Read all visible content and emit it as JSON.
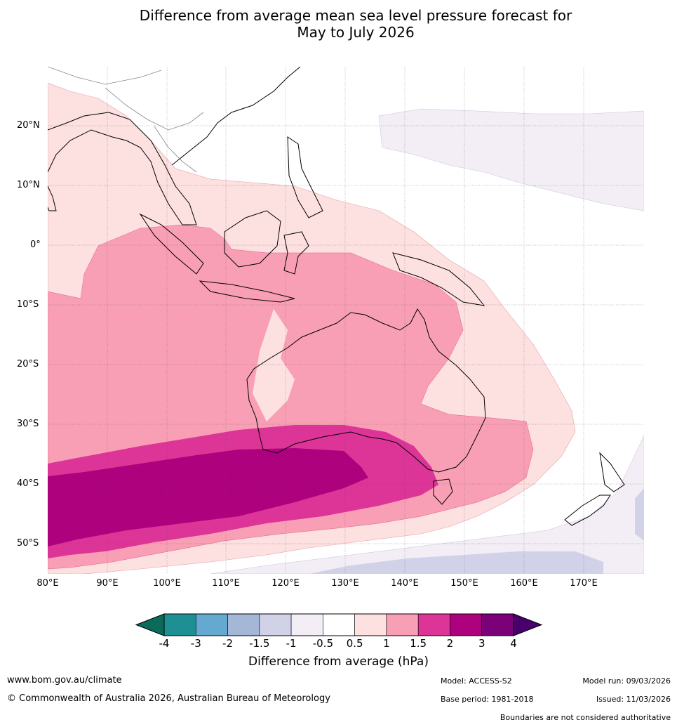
{
  "title_line1": "Difference from average mean sea level pressure forecast for",
  "title_line2": "May to July 2026",
  "lat_labels": [
    "20°N",
    "10°N",
    "0°",
    "10°S",
    "20°S",
    "30°S",
    "40°S",
    "50°S"
  ],
  "lon_labels": [
    "80°E",
    "90°E",
    "100°E",
    "110°E",
    "120°E",
    "130°E",
    "140°E",
    "150°E",
    "160°E",
    "170°E"
  ],
  "colorbar": {
    "title": "Difference from average (hPa)",
    "ticks": [
      "-4",
      "-3",
      "-2",
      "-1.5",
      "-1",
      "-0.5",
      "0.5",
      "1",
      "1.5",
      "2",
      "3",
      "4"
    ],
    "colors": [
      "#0a6b5a",
      "#1e9094",
      "#66a9d0",
      "#a5b7d6",
      "#d1d2e7",
      "#f3edf6",
      "#ffffff",
      "#fde0e0",
      "#f89fb6",
      "#dd3497",
      "#ae017e",
      "#7a0177",
      "#49006a"
    ]
  },
  "footer": {
    "website": "www.bom.gov.au/climate",
    "copyright": "© Commonwealth of Australia 2026, Australian Bureau of Meteorology",
    "model": "Model: ACCESS-S2",
    "base_period": "Base period: 1981-2018",
    "model_run": "Model run: 09/03/2026",
    "issued": "Issued: 11/03/2026",
    "boundaries": "Boundaries are not considered authoritative"
  }
}
